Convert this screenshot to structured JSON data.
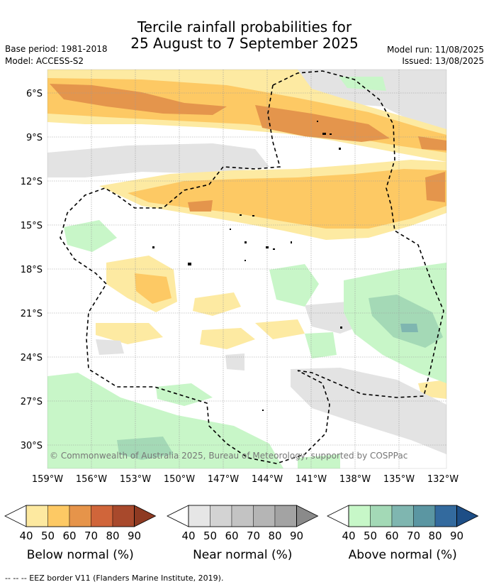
{
  "title_line1": "Tercile rainfall probabilities for",
  "title_line2": "25 August to 7 September 2025",
  "base_period": "Base period: 1981-2018",
  "model": "Model: ACCESS-S2",
  "model_run": "Model run: 11/08/2025",
  "issued": "Issued: 13/08/2025",
  "copyright": "© Commonwealth of Australia 2025, Bureau of Meteorology, supported by COSPPac",
  "footer": "--  --  -- EEZ border V11 (Flanders Marine Institute, 2019).",
  "lat_labels": [
    "6°S",
    "9°S",
    "12°S",
    "15°S",
    "18°S",
    "21°S",
    "24°S",
    "27°S",
    "30°S"
  ],
  "lon_labels": [
    "159°W",
    "156°W",
    "153°W",
    "150°W",
    "147°W",
    "144°W",
    "141°W",
    "138°W",
    "135°W",
    "132°W"
  ],
  "colorbars": [
    {
      "name": "below",
      "title": "Below normal (%)",
      "ticks": [
        "40",
        "50",
        "60",
        "70",
        "80",
        "90"
      ],
      "colors": [
        "#fde9a0",
        "#fdc964",
        "#e6944a",
        "#d0653a",
        "#a8492c",
        "#8e3a22"
      ]
    },
    {
      "name": "near",
      "title": "Near normal (%)",
      "ticks": [
        "40",
        "50",
        "60",
        "70",
        "80",
        "90"
      ],
      "colors": [
        "#e6e6e6",
        "#d3d3d3",
        "#c3c3c3",
        "#b5b5b5",
        "#a3a3a3",
        "#8a8a8a"
      ]
    },
    {
      "name": "above",
      "title": "Above normal (%)",
      "ticks": [
        "40",
        "50",
        "60",
        "70",
        "80",
        "90"
      ],
      "colors": [
        "#c7f7c8",
        "#a3d9b6",
        "#7fb6b0",
        "#5b96a2",
        "#336a9e",
        "#1d4e86"
      ]
    }
  ]
}
